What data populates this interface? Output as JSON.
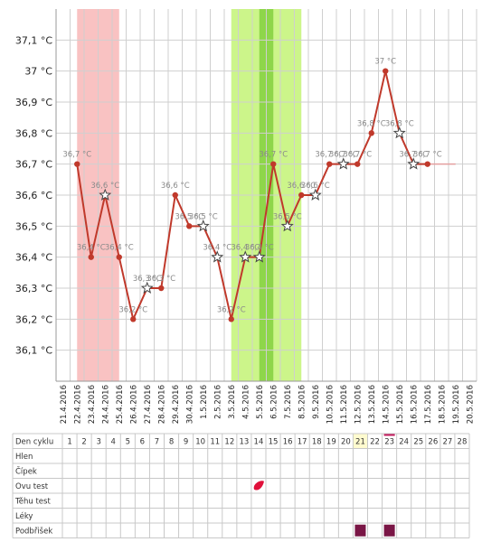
{
  "chart_data": {
    "type": "line",
    "y_unit": "°C",
    "ylim": [
      36.0,
      37.2
    ],
    "y_ticks": [
      "36,1 °C",
      "36,2 °C",
      "36,3 °C",
      "36,4 °C",
      "36,5 °C",
      "36,6 °C",
      "36,7 °C",
      "36,8 °C",
      "36,9 °C",
      "37 °C",
      "37,1 °C"
    ],
    "x_dates": [
      "21.4.2016",
      "22.4.2016",
      "23.4.2016",
      "24.4.2016",
      "25.4.2016",
      "26.4.2016",
      "27.4.2016",
      "28.4.2016",
      "29.4.2016",
      "30.4.2016",
      "1.5.2016",
      "2.5.2016",
      "3.5.2016",
      "4.5.2016",
      "5.5.2016",
      "6.5.2016",
      "7.5.2016",
      "8.5.2016",
      "9.5.2016",
      "10.5.2016",
      "11.5.2016",
      "12.5.2016",
      "13.5.2016",
      "14.5.2016",
      "15.5.2016",
      "16.5.2016",
      "17.5.2016",
      "18.5.2016",
      "19.5.2016",
      "20.5.2016"
    ],
    "series": [
      {
        "color": "#c0392b",
        "points": [
          {
            "x": "22.4.2016",
            "y": 36.7,
            "label": "36,7 °C",
            "marker": "dot"
          },
          {
            "x": "23.4.2016",
            "y": 36.4,
            "label": "36,4 °C",
            "marker": "dot"
          },
          {
            "x": "24.4.2016",
            "y": 36.6,
            "label": "36,6 °C",
            "marker": "star"
          },
          {
            "x": "25.4.2016",
            "y": 36.4,
            "label": "36,4 °C",
            "marker": "dot"
          },
          {
            "x": "26.4.2016",
            "y": 36.2,
            "label": "36,2 °C",
            "marker": "dot"
          },
          {
            "x": "27.4.2016",
            "y": 36.3,
            "label": "36,3 °C",
            "marker": "star"
          },
          {
            "x": "28.4.2016",
            "y": 36.3,
            "label": "36,3 °C",
            "marker": "dot"
          },
          {
            "x": "29.4.2016",
            "y": 36.6,
            "label": "36,6 °C",
            "marker": "dot"
          },
          {
            "x": "30.4.2016",
            "y": 36.5,
            "label": "36,5 °C",
            "marker": "dot"
          },
          {
            "x": "1.5.2016",
            "y": 36.5,
            "label": "36,5 °C",
            "marker": "star"
          },
          {
            "x": "2.5.2016",
            "y": 36.4,
            "label": "36,4 °C",
            "marker": "star"
          },
          {
            "x": "3.5.2016",
            "y": 36.2,
            "label": "36,2 °C",
            "marker": "dot"
          },
          {
            "x": "4.5.2016",
            "y": 36.4,
            "label": "36,4 °C",
            "marker": "star"
          },
          {
            "x": "5.5.2016",
            "y": 36.4,
            "label": "36,4 °C",
            "marker": "star"
          },
          {
            "x": "6.5.2016",
            "y": 36.7,
            "label": "36,7 °C",
            "marker": "dot"
          },
          {
            "x": "7.5.2016",
            "y": 36.5,
            "label": "36,5 °C",
            "marker": "star"
          },
          {
            "x": "8.5.2016",
            "y": 36.6,
            "label": "36,6 °C",
            "marker": "dot"
          },
          {
            "x": "9.5.2016",
            "y": 36.6,
            "label": "36,6 °C",
            "marker": "star"
          },
          {
            "x": "10.5.2016",
            "y": 36.7,
            "label": "36,7 °C",
            "marker": "dot"
          },
          {
            "x": "11.5.2016",
            "y": 36.7,
            "label": "36,7 °C",
            "marker": "star"
          },
          {
            "x": "12.5.2016",
            "y": 36.7,
            "label": "36,7 °C",
            "marker": "dot"
          },
          {
            "x": "13.5.2016",
            "y": 36.8,
            "label": "36,8 °C",
            "marker": "dot"
          },
          {
            "x": "14.5.2016",
            "y": 37.0,
            "label": "37 °C",
            "marker": "dot"
          },
          {
            "x": "15.5.2016",
            "y": 36.8,
            "label": "36,8 °C",
            "marker": "star"
          },
          {
            "x": "16.5.2016",
            "y": 36.7,
            "label": "36,7 °C",
            "marker": "star"
          },
          {
            "x": "17.5.2016",
            "y": 36.7,
            "label": "36,7 °C",
            "marker": "dot"
          }
        ]
      }
    ],
    "bands": [
      {
        "from": "22.4.2016",
        "to": "24.4.2016",
        "color": "#f9c2c2"
      },
      {
        "from": "3.5.2016",
        "to": "7.5.2016",
        "color": "#ccf58a"
      },
      {
        "from": "5.5.2016",
        "to": "5.5.2016",
        "color": "#8ed64a"
      }
    ],
    "grid": true
  },
  "table": {
    "header_label": "Den cyklu",
    "days": [
      "1",
      "2",
      "3",
      "4",
      "5",
      "6",
      "7",
      "8",
      "9",
      "10",
      "11",
      "12",
      "13",
      "14",
      "15",
      "16",
      "17",
      "18",
      "19",
      "20",
      "21",
      "22",
      "23",
      "24",
      "25",
      "26",
      "27",
      "28"
    ],
    "highlight_day": "21",
    "today_day": "23",
    "rows": [
      {
        "label": "Hlen",
        "marks": []
      },
      {
        "label": "Čípek",
        "marks": []
      },
      {
        "label": "Ovu test",
        "marks": [
          {
            "day": "14",
            "icon": "drop-icon"
          }
        ]
      },
      {
        "label": "Těhu test",
        "marks": []
      },
      {
        "label": "Léky",
        "marks": []
      },
      {
        "label": "Podbřišek",
        "marks": [
          {
            "day": "21",
            "icon": "square-icon"
          },
          {
            "day": "23",
            "icon": "square-icon"
          }
        ]
      }
    ],
    "mark_colors": {
      "drop": "#e0103a",
      "square": "#7a1646",
      "highlight": "#fffbcf",
      "today": "#c2185b"
    }
  }
}
